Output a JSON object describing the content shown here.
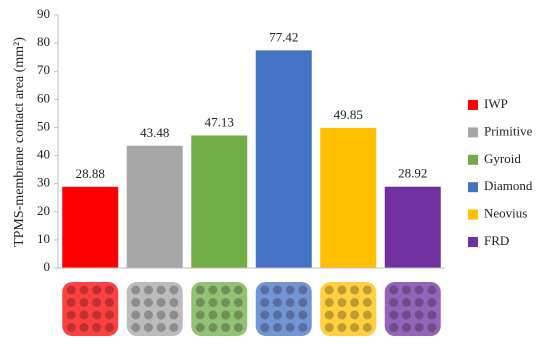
{
  "chart_data": {
    "type": "bar",
    "y_label": "TPMS-membrane contact area (mm²)",
    "categories": [
      "IWP",
      "Primitive",
      "Gyroid",
      "Diamond",
      "Neovius",
      "FRD"
    ],
    "values": [
      28.88,
      43.48,
      47.13,
      77.42,
      49.85,
      28.92
    ],
    "colors": [
      "#ff0000",
      "#a6a6a6",
      "#70ad47",
      "#4472c4",
      "#ffc000",
      "#7030a0"
    ],
    "ylim": [
      0,
      90
    ],
    "yticks": [
      0,
      10,
      20,
      30,
      40,
      50,
      60,
      70,
      80,
      90
    ],
    "legend": "right"
  }
}
